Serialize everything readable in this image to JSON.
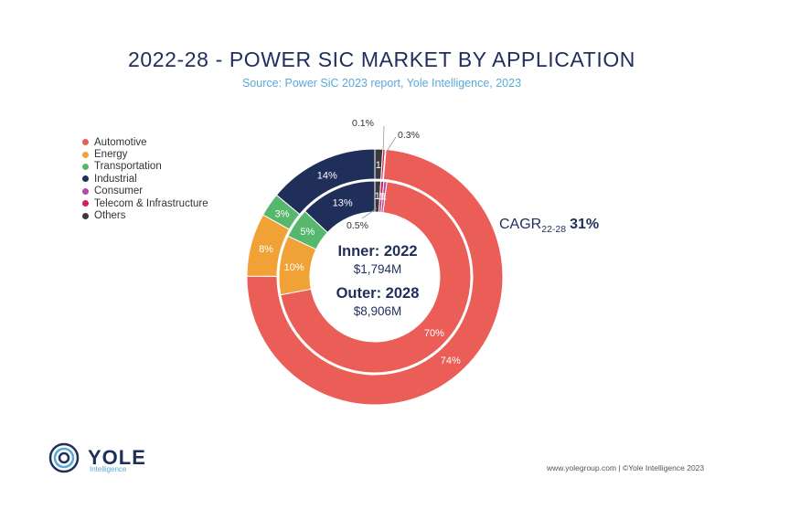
{
  "chart_data": {
    "type": "donut",
    "title": "2022-28 - POWER SIC MARKET BY APPLICATION",
    "subtitle": "Source: Power SiC 2023 report, Yole Intelligence, 2023",
    "legend": [
      "Automotive",
      "Energy",
      "Transportation",
      "Industrial",
      "Consumer",
      "Telecom & Infrastructure",
      "Others"
    ],
    "colors": [
      "#ea5e57",
      "#f0a237",
      "#55b86d",
      "#1f2f5a",
      "#b24aa8",
      "#d11d5e",
      "#3a3a3a"
    ],
    "inner": {
      "label": "Inner: 2022",
      "total": "$1,794M",
      "values": [
        70,
        10,
        5,
        13,
        0.5,
        0.5,
        1
      ],
      "labels": [
        "70%",
        "10%",
        "5%",
        "13%",
        "1",
        "1",
        "1"
      ]
    },
    "outer": {
      "label": "Outer: 2028",
      "total": "$8,906M",
      "values": [
        74,
        8,
        3,
        14,
        0.1,
        0.3,
        1
      ],
      "labels": [
        "74%",
        "8%",
        "3%",
        "14%",
        "",
        "",
        "1"
      ]
    },
    "callouts": {
      "outer_consumer": "0.1%",
      "outer_telecom": "0.3%",
      "inner_small": "0.5%"
    },
    "cagr": {
      "label": "CAGR",
      "sub": "22-28",
      "value": "31%"
    }
  },
  "branding": {
    "logo": "YOLE",
    "logo_sub": "Intelligence",
    "footer": "www.yolegroup.com | ©Yole Intelligence 2023"
  }
}
